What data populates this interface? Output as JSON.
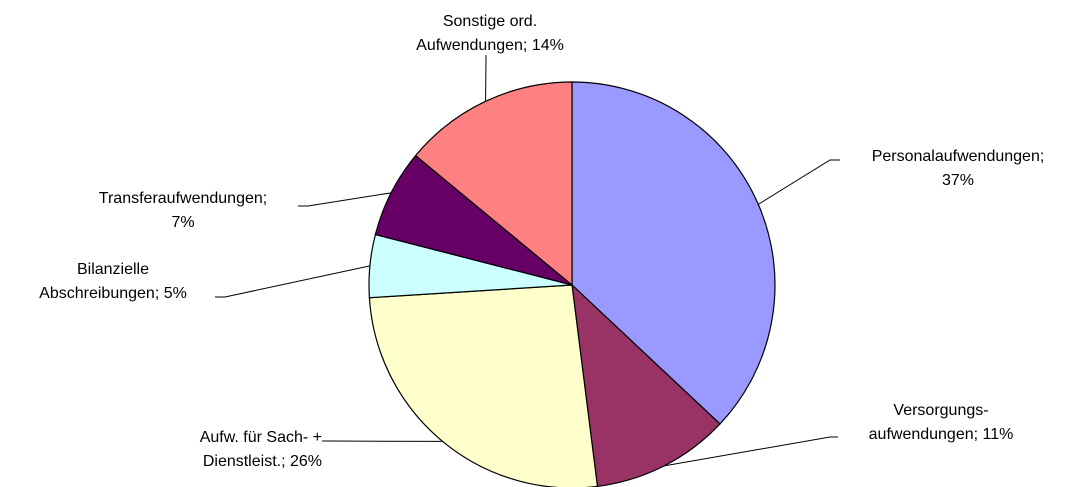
{
  "chart_data": {
    "type": "pie",
    "values": [
      37,
      11,
      26,
      5,
      7,
      14
    ],
    "value_labels": [
      [
        "Personalaufwendungen;",
        "37%"
      ],
      [
        "Versorgungs-",
        "aufwendungen; 11%"
      ],
      [
        "Aufw. für Sach- +",
        "Dienstleist.; 26%"
      ],
      [
        "Bilanzielle",
        "Abschreibungen; 5%"
      ],
      [
        "Transferaufwendungen;",
        "7%"
      ],
      [
        "Sonstige ord.",
        "Aufwendungen; 14%"
      ]
    ],
    "colors": [
      "#9999ff",
      "#993366",
      "#ffffcc",
      "#ccffff",
      "#660066",
      "#ff8080"
    ]
  }
}
